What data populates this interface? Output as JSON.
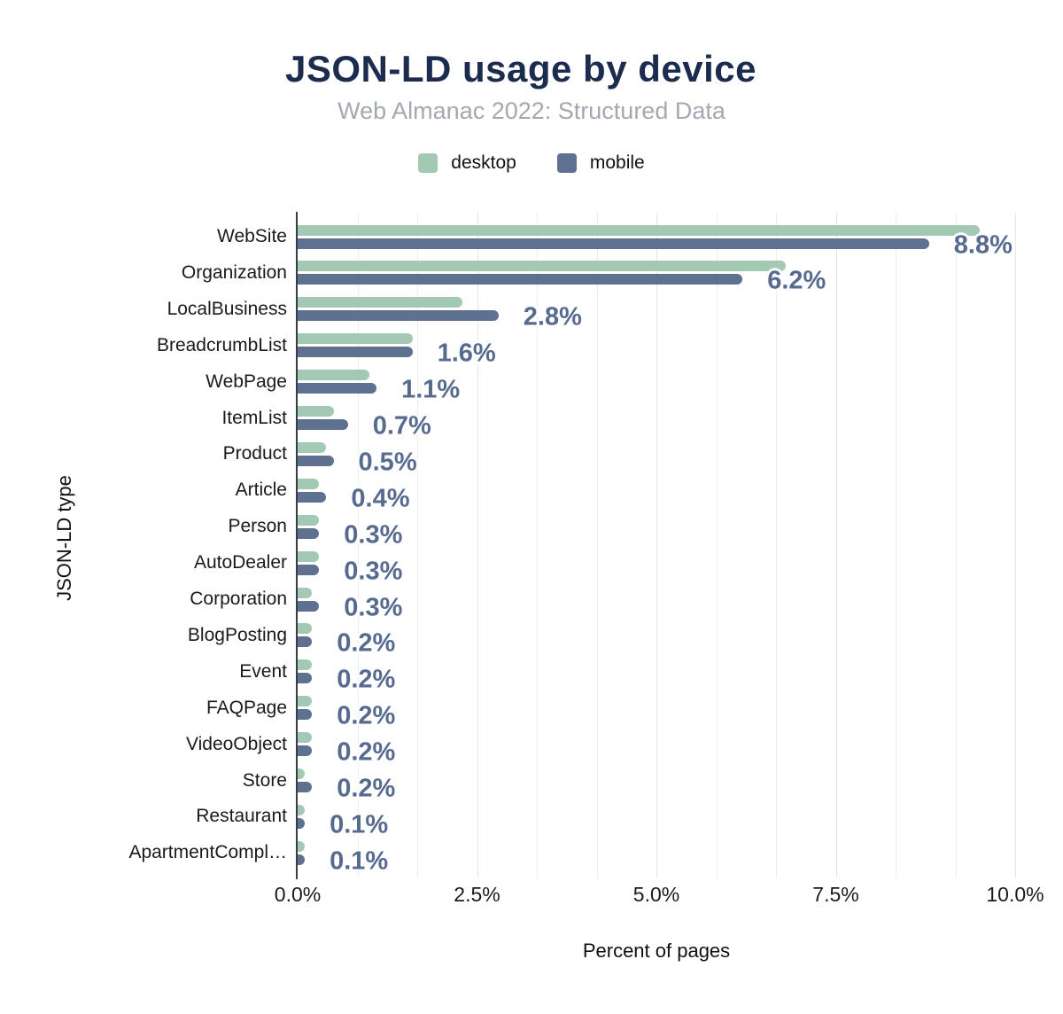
{
  "chart": {
    "title": "JSON-LD usage by device",
    "subtitle": "Web Almanac 2022: Structured Data",
    "xlabel": "Percent of pages",
    "ylabel": "JSON-LD type"
  },
  "colors": {
    "title": "#1b2c4e",
    "subtitle": "#a2a9b0",
    "desktop_bar": "#a3c8b4",
    "mobile_bar": "#5e7190",
    "value_label": "#566b8f",
    "gridline": "#ededed",
    "axis_line": "#3a3d40"
  },
  "chart_data": {
    "type": "bar",
    "orientation": "horizontal",
    "title": "JSON-LD usage by device",
    "subtitle": "Web Almanac 2022: Structured Data",
    "xlabel": "Percent of pages",
    "ylabel": "JSON-LD type",
    "legend_position": "top",
    "grid": true,
    "xlim": [
      0,
      10
    ],
    "x_ticks": [
      "0.0%",
      "2.5%",
      "5.0%",
      "7.5%",
      "10.0%"
    ],
    "x_tick_values": [
      0,
      2.5,
      5,
      7.5,
      10
    ],
    "minor_gridlines_per_major": 3,
    "categories": [
      "WebSite",
      "Organization",
      "LocalBusiness",
      "BreadcrumbList",
      "WebPage",
      "ItemList",
      "Product",
      "Article",
      "Person",
      "AutoDealer",
      "Corporation",
      "BlogPosting",
      "Event",
      "FAQPage",
      "VideoObject",
      "Store",
      "Restaurant",
      "ApartmentCompl…"
    ],
    "series": [
      {
        "name": "desktop",
        "color": "#a3c8b4",
        "values": [
          9.5,
          6.8,
          2.3,
          1.6,
          1.0,
          0.5,
          0.4,
          0.3,
          0.3,
          0.3,
          0.2,
          0.2,
          0.2,
          0.2,
          0.2,
          0.1,
          0.1,
          0.1
        ]
      },
      {
        "name": "mobile",
        "color": "#5e7190",
        "values": [
          8.8,
          6.2,
          2.8,
          1.6,
          1.1,
          0.7,
          0.5,
          0.4,
          0.3,
          0.3,
          0.3,
          0.2,
          0.2,
          0.2,
          0.2,
          0.2,
          0.1,
          0.1
        ]
      }
    ],
    "value_labels": [
      "8.8%",
      "6.2%",
      "2.8%",
      "1.6%",
      "1.1%",
      "0.7%",
      "0.5%",
      "0.4%",
      "0.3%",
      "0.3%",
      "0.3%",
      "0.2%",
      "0.2%",
      "0.2%",
      "0.2%",
      "0.2%",
      "0.1%",
      "0.1%"
    ],
    "value_labels_series": "mobile"
  }
}
